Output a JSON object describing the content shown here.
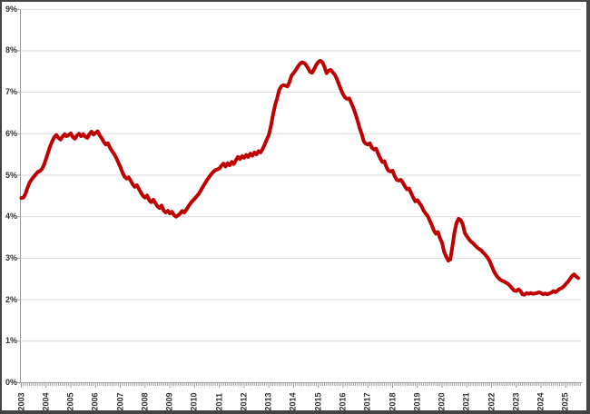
{
  "chart_data": {
    "type": "line",
    "title": "",
    "xlabel": "",
    "ylabel": "",
    "legend": "none",
    "grid": "horizontal",
    "ylim": [
      0,
      9
    ],
    "y_tick_labels": [
      "0%",
      "1%",
      "2%",
      "3%",
      "4%",
      "5%",
      "6%",
      "7%",
      "8%",
      "9%"
    ],
    "x_tick_labels": [
      "2003",
      "2004",
      "2005",
      "2006",
      "2007",
      "2008",
      "2009",
      "2010",
      "2011",
      "2012",
      "2013",
      "2014",
      "2015",
      "2016",
      "2017",
      "2018",
      "2019",
      "2020",
      "2021",
      "2022",
      "2023",
      "2024",
      "2025"
    ],
    "x_start_year": 2003,
    "x_frequency": "monthly",
    "x_end": "mid-2025",
    "values": [
      4.45,
      4.46,
      4.55,
      4.7,
      4.82,
      4.9,
      4.96,
      5.02,
      5.08,
      5.1,
      5.15,
      5.25,
      5.4,
      5.55,
      5.7,
      5.82,
      5.92,
      5.97,
      5.9,
      5.86,
      5.93,
      5.99,
      5.94,
      5.97,
      6.01,
      5.92,
      5.88,
      5.96,
      6.0,
      5.94,
      5.99,
      5.93,
      5.9,
      5.99,
      6.05,
      5.98,
      6.02,
      6.06,
      5.96,
      5.89,
      5.8,
      5.74,
      5.77,
      5.66,
      5.58,
      5.51,
      5.42,
      5.31,
      5.2,
      5.07,
      4.97,
      4.92,
      4.95,
      4.87,
      4.78,
      4.72,
      4.76,
      4.67,
      4.58,
      4.5,
      4.46,
      4.51,
      4.4,
      4.35,
      4.41,
      4.33,
      4.25,
      4.21,
      4.27,
      4.15,
      4.1,
      4.14,
      4.08,
      4.12,
      4.04,
      4.0,
      4.03,
      4.08,
      4.14,
      4.1,
      4.17,
      4.25,
      4.32,
      4.38,
      4.43,
      4.49,
      4.55,
      4.63,
      4.72,
      4.8,
      4.88,
      4.95,
      5.02,
      5.08,
      5.12,
      5.14,
      5.16,
      5.23,
      5.28,
      5.21,
      5.29,
      5.24,
      5.32,
      5.27,
      5.36,
      5.44,
      5.39,
      5.46,
      5.42,
      5.49,
      5.44,
      5.52,
      5.47,
      5.55,
      5.5,
      5.58,
      5.55,
      5.63,
      5.74,
      5.86,
      5.97,
      6.18,
      6.45,
      6.68,
      6.85,
      7.05,
      7.14,
      7.17,
      7.16,
      7.14,
      7.24,
      7.4,
      7.46,
      7.53,
      7.61,
      7.68,
      7.72,
      7.71,
      7.66,
      7.58,
      7.49,
      7.47,
      7.56,
      7.66,
      7.73,
      7.76,
      7.72,
      7.61,
      7.46,
      7.52,
      7.54,
      7.48,
      7.42,
      7.32,
      7.19,
      7.06,
      6.95,
      6.87,
      6.84,
      6.85,
      6.74,
      6.62,
      6.48,
      6.32,
      6.14,
      6.0,
      5.82,
      5.76,
      5.74,
      5.77,
      5.66,
      5.62,
      5.64,
      5.52,
      5.41,
      5.32,
      5.34,
      5.2,
      5.11,
      5.09,
      5.11,
      4.98,
      4.89,
      4.87,
      4.89,
      4.82,
      4.73,
      4.66,
      4.68,
      4.57,
      4.46,
      4.37,
      4.4,
      4.33,
      4.26,
      4.15,
      4.08,
      4.02,
      3.91,
      3.8,
      3.67,
      3.59,
      3.63,
      3.48,
      3.37,
      3.15,
      3.04,
      2.94,
      2.97,
      3.28,
      3.62,
      3.85,
      3.95,
      3.92,
      3.82,
      3.61,
      3.53,
      3.46,
      3.4,
      3.36,
      3.31,
      3.26,
      3.22,
      3.19,
      3.13,
      3.08,
      3.02,
      2.94,
      2.82,
      2.7,
      2.61,
      2.54,
      2.49,
      2.46,
      2.44,
      2.41,
      2.38,
      2.33,
      2.27,
      2.22,
      2.21,
      2.25,
      2.21,
      2.13,
      2.12,
      2.16,
      2.14,
      2.16,
      2.14,
      2.15,
      2.16,
      2.18,
      2.16,
      2.13,
      2.15,
      2.13,
      2.15,
      2.17,
      2.21,
      2.18,
      2.22,
      2.26,
      2.28,
      2.32,
      2.38,
      2.43,
      2.5,
      2.57,
      2.61,
      2.56,
      2.52
    ],
    "colors": {
      "line": "#c00000",
      "grid": "#d9d9d9",
      "axis": "#9c9c9c",
      "label": "#303030",
      "frame": "#444444",
      "background": "#ffffff"
    }
  }
}
